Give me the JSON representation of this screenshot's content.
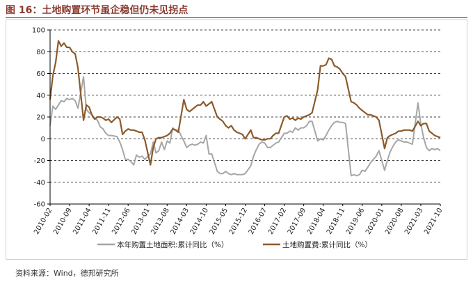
{
  "title": "图 16：土地购置环节虽企稳但仍未见拐点",
  "source": "资料来源：Wind，德邦研究所",
  "colors": {
    "title": "#8B3A2E",
    "area_series": "#A6A6A6",
    "cost_series": "#8B5A2B",
    "gridline": "#000000"
  },
  "chart_data": {
    "type": "line",
    "ylim": [
      -60,
      100
    ],
    "yticks": [
      100,
      80,
      60,
      40,
      20,
      0,
      -20,
      -40,
      -60
    ],
    "grid": "horizontal dashed",
    "legend_position": "bottom",
    "xtick_labels": [
      "2010-02",
      "2010-09",
      "2011-04",
      "2011-11",
      "2012-06",
      "2013-01",
      "2013-08",
      "2014-03",
      "2014-10",
      "2015-05",
      "2015-12",
      "2016-07",
      "2017-02",
      "2017-09",
      "2018-04",
      "2018-11",
      "2019-06",
      "2020-01",
      "2020-08",
      "2021-03",
      "2021-10"
    ],
    "x_start": "2010-02",
    "x_end": "2021-10",
    "series": [
      {
        "name": "本年购置土地面积:累计同比（%）",
        "color": "#A6A6A6",
        "points": [
          [
            "2010-02",
            12
          ],
          [
            "2010-03",
            30
          ],
          [
            "2010-04",
            27
          ],
          [
            "2010-05",
            31
          ],
          [
            "2010-06",
            35
          ],
          [
            "2010-07",
            34
          ],
          [
            "2010-08",
            37
          ],
          [
            "2010-09",
            36
          ],
          [
            "2010-10",
            37
          ],
          [
            "2010-11",
            35
          ],
          [
            "2010-12",
            28
          ],
          [
            "2011-02",
            57
          ],
          [
            "2011-03",
            27
          ],
          [
            "2011-04",
            24
          ],
          [
            "2011-05",
            22
          ],
          [
            "2011-06",
            19
          ],
          [
            "2011-07",
            17
          ],
          [
            "2011-08",
            11
          ],
          [
            "2011-09",
            9
          ],
          [
            "2011-10",
            5
          ],
          [
            "2011-11",
            3
          ],
          [
            "2011-12",
            3
          ],
          [
            "2012-02",
            2
          ],
          [
            "2012-03",
            -3
          ],
          [
            "2012-04",
            -10
          ],
          [
            "2012-05",
            -19
          ],
          [
            "2012-06",
            -19
          ],
          [
            "2012-07",
            -21
          ],
          [
            "2012-08",
            -24
          ],
          [
            "2012-09",
            -15
          ],
          [
            "2012-10",
            -17
          ],
          [
            "2012-11",
            -16
          ],
          [
            "2012-12",
            -19
          ],
          [
            "2013-02",
            -14
          ],
          [
            "2013-03",
            -3
          ],
          [
            "2013-04",
            -13
          ],
          [
            "2013-05",
            -11
          ],
          [
            "2013-06",
            -3
          ],
          [
            "2013-07",
            -10
          ],
          [
            "2013-08",
            -2
          ],
          [
            "2013-09",
            -4
          ],
          [
            "2013-10",
            10
          ],
          [
            "2013-11",
            8
          ],
          [
            "2013-12",
            8
          ],
          [
            "2014-02",
            -2
          ],
          [
            "2014-03",
            -8
          ],
          [
            "2014-04",
            -6
          ],
          [
            "2014-05",
            -5
          ],
          [
            "2014-06",
            -6
          ],
          [
            "2014-07",
            -5
          ],
          [
            "2014-08",
            -3
          ],
          [
            "2014-09",
            -4
          ],
          [
            "2014-10",
            3
          ],
          [
            "2014-11",
            -14
          ],
          [
            "2014-12",
            -14
          ],
          [
            "2015-02",
            -30
          ],
          [
            "2015-03",
            -32
          ],
          [
            "2015-04",
            -32
          ],
          [
            "2015-05",
            -30
          ],
          [
            "2015-06",
            -32
          ],
          [
            "2015-07",
            -33
          ],
          [
            "2015-08",
            -32
          ],
          [
            "2015-09",
            -33
          ],
          [
            "2015-10",
            -33
          ],
          [
            "2015-11",
            -33
          ],
          [
            "2015-12",
            -32
          ],
          [
            "2016-02",
            -25
          ],
          [
            "2016-03",
            -16
          ],
          [
            "2016-04",
            -10
          ],
          [
            "2016-05",
            -5
          ],
          [
            "2016-06",
            -3
          ],
          [
            "2016-07",
            -4
          ],
          [
            "2016-08",
            -8
          ],
          [
            "2016-09",
            -8
          ],
          [
            "2016-10",
            -6
          ],
          [
            "2016-11",
            -4
          ],
          [
            "2016-12",
            -3
          ],
          [
            "2017-02",
            5
          ],
          [
            "2017-03",
            5
          ],
          [
            "2017-04",
            7
          ],
          [
            "2017-05",
            6
          ],
          [
            "2017-06",
            10
          ],
          [
            "2017-07",
            8
          ],
          [
            "2017-08",
            10
          ],
          [
            "2017-09",
            10
          ],
          [
            "2017-10",
            12
          ],
          [
            "2017-11",
            16
          ],
          [
            "2017-12",
            16
          ],
          [
            "2018-02",
            -2
          ],
          [
            "2018-03",
            0
          ],
          [
            "2018-04",
            -1
          ],
          [
            "2018-05",
            3
          ],
          [
            "2018-06",
            8
          ],
          [
            "2018-07",
            12
          ],
          [
            "2018-08",
            15
          ],
          [
            "2018-09",
            16
          ],
          [
            "2018-10",
            15
          ],
          [
            "2018-11",
            15
          ],
          [
            "2018-12",
            14
          ],
          [
            "2019-02",
            -34
          ],
          [
            "2019-03",
            -33
          ],
          [
            "2019-04",
            -34
          ],
          [
            "2019-05",
            -33
          ],
          [
            "2019-06",
            -29
          ],
          [
            "2019-07",
            -30
          ],
          [
            "2019-08",
            -26
          ],
          [
            "2019-09",
            -22
          ],
          [
            "2019-10",
            -19
          ],
          [
            "2019-11",
            -16
          ],
          [
            "2019-12",
            -11
          ],
          [
            "2020-02",
            -29
          ],
          [
            "2020-03",
            -20
          ],
          [
            "2020-04",
            -12
          ],
          [
            "2020-05",
            -7
          ],
          [
            "2020-06",
            -3
          ],
          [
            "2020-07",
            -1
          ],
          [
            "2020-08",
            -2
          ],
          [
            "2020-09",
            -3
          ],
          [
            "2020-10",
            -3
          ],
          [
            "2020-11",
            -4
          ],
          [
            "2020-12",
            -5
          ],
          [
            "2021-02",
            33
          ],
          [
            "2021-03",
            14
          ],
          [
            "2021-04",
            1
          ],
          [
            "2021-05",
            -8
          ],
          [
            "2021-06",
            -11
          ],
          [
            "2021-07",
            -9
          ],
          [
            "2021-08",
            -10
          ],
          [
            "2021-09",
            -9
          ],
          [
            "2021-10",
            -11
          ]
        ]
      },
      {
        "name": "土地购置费:累计同比（%）",
        "color": "#8B5A2B",
        "points": [
          [
            "2010-02",
            36
          ],
          [
            "2010-03",
            58
          ],
          [
            "2010-04",
            70
          ],
          [
            "2010-05",
            90
          ],
          [
            "2010-06",
            85
          ],
          [
            "2010-07",
            88
          ],
          [
            "2010-08",
            84
          ],
          [
            "2010-09",
            84
          ],
          [
            "2010-10",
            80
          ],
          [
            "2010-11",
            78
          ],
          [
            "2010-12",
            65
          ],
          [
            "2011-02",
            17
          ],
          [
            "2011-03",
            31
          ],
          [
            "2011-04",
            29
          ],
          [
            "2011-05",
            22
          ],
          [
            "2011-06",
            18
          ],
          [
            "2011-07",
            20
          ],
          [
            "2011-08",
            20
          ],
          [
            "2011-09",
            19
          ],
          [
            "2011-10",
            17
          ],
          [
            "2011-11",
            18
          ],
          [
            "2011-12",
            15
          ],
          [
            "2012-02",
            20
          ],
          [
            "2012-03",
            18
          ],
          [
            "2012-04",
            4
          ],
          [
            "2012-05",
            7
          ],
          [
            "2012-06",
            9
          ],
          [
            "2012-07",
            8
          ],
          [
            "2012-08",
            8
          ],
          [
            "2012-09",
            7
          ],
          [
            "2012-10",
            6
          ],
          [
            "2012-11",
            6
          ],
          [
            "2012-12",
            -1
          ],
          [
            "2013-02",
            -24
          ],
          [
            "2013-03",
            -8
          ],
          [
            "2013-04",
            0
          ],
          [
            "2013-05",
            1
          ],
          [
            "2013-06",
            1
          ],
          [
            "2013-07",
            2
          ],
          [
            "2013-08",
            3
          ],
          [
            "2013-09",
            5
          ],
          [
            "2013-10",
            9
          ],
          [
            "2013-11",
            8
          ],
          [
            "2013-12",
            6
          ],
          [
            "2014-02",
            36
          ],
          [
            "2014-03",
            27
          ],
          [
            "2014-04",
            25
          ],
          [
            "2014-05",
            27
          ],
          [
            "2014-06",
            29
          ],
          [
            "2014-07",
            31
          ],
          [
            "2014-08",
            31
          ],
          [
            "2014-09",
            34
          ],
          [
            "2014-10",
            30
          ],
          [
            "2014-11",
            32
          ],
          [
            "2014-12",
            34
          ],
          [
            "2015-02",
            20
          ],
          [
            "2015-03",
            18
          ],
          [
            "2015-04",
            16
          ],
          [
            "2015-05",
            12
          ],
          [
            "2015-06",
            10
          ],
          [
            "2015-07",
            12
          ],
          [
            "2015-08",
            8
          ],
          [
            "2015-09",
            6
          ],
          [
            "2015-10",
            5
          ],
          [
            "2015-11",
            4
          ],
          [
            "2015-12",
            0
          ],
          [
            "2016-02",
            8
          ],
          [
            "2016-03",
            1
          ],
          [
            "2016-04",
            1
          ],
          [
            "2016-05",
            0
          ],
          [
            "2016-06",
            -1
          ],
          [
            "2016-07",
            -1
          ],
          [
            "2016-08",
            0
          ],
          [
            "2016-09",
            0
          ],
          [
            "2016-10",
            3
          ],
          [
            "2016-11",
            5
          ],
          [
            "2016-12",
            5
          ],
          [
            "2017-02",
            20
          ],
          [
            "2017-03",
            21
          ],
          [
            "2017-04",
            18
          ],
          [
            "2017-05",
            19
          ],
          [
            "2017-06",
            17
          ],
          [
            "2017-07",
            19
          ],
          [
            "2017-08",
            18
          ],
          [
            "2017-09",
            20
          ],
          [
            "2017-10",
            21
          ],
          [
            "2017-11",
            22
          ],
          [
            "2017-12",
            24
          ],
          [
            "2018-02",
            45
          ],
          [
            "2018-03",
            67
          ],
          [
            "2018-04",
            67
          ],
          [
            "2018-05",
            68
          ],
          [
            "2018-06",
            74
          ],
          [
            "2018-07",
            73
          ],
          [
            "2018-08",
            67
          ],
          [
            "2018-09",
            66
          ],
          [
            "2018-10",
            64
          ],
          [
            "2018-11",
            60
          ],
          [
            "2018-12",
            57
          ],
          [
            "2019-02",
            34
          ],
          [
            "2019-03",
            33
          ],
          [
            "2019-04",
            31
          ],
          [
            "2019-05",
            28
          ],
          [
            "2019-06",
            26
          ],
          [
            "2019-07",
            24
          ],
          [
            "2019-08",
            22
          ],
          [
            "2019-09",
            22
          ],
          [
            "2019-10",
            21
          ],
          [
            "2019-11",
            20
          ],
          [
            "2019-12",
            17
          ],
          [
            "2020-02",
            -9
          ],
          [
            "2020-03",
            1
          ],
          [
            "2020-04",
            3
          ],
          [
            "2020-05",
            4
          ],
          [
            "2020-06",
            5
          ],
          [
            "2020-07",
            7
          ],
          [
            "2020-08",
            7
          ],
          [
            "2020-09",
            8
          ],
          [
            "2020-10",
            8
          ],
          [
            "2020-11",
            8
          ],
          [
            "2020-12",
            7
          ],
          [
            "2021-02",
            16
          ],
          [
            "2021-03",
            12
          ],
          [
            "2021-04",
            14
          ],
          [
            "2021-05",
            14
          ],
          [
            "2021-06",
            7
          ],
          [
            "2021-07",
            5
          ],
          [
            "2021-08",
            3
          ],
          [
            "2021-09",
            2
          ],
          [
            "2021-10",
            1
          ]
        ]
      }
    ]
  }
}
